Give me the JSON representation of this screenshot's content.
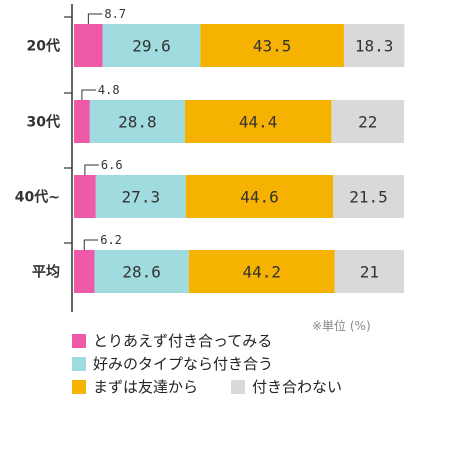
{
  "chart_data": {
    "type": "bar",
    "orientation": "horizontal",
    "stacked": true,
    "xlim": [
      0,
      100
    ],
    "categories": [
      "20代",
      "30代",
      "40代~",
      "平均"
    ],
    "series": [
      {
        "name": "とりあえず付き合ってみる",
        "values": [
          8.7,
          4.8,
          6.6,
          6.2
        ],
        "color": "#ee5aa8"
      },
      {
        "name": "好みのタイプなら付き合う",
        "values": [
          29.6,
          28.8,
          27.3,
          28.6
        ],
        "color": "#a0dbe0"
      },
      {
        "name": "まずは友達から",
        "values": [
          43.5,
          44.4,
          44.6,
          44.2
        ],
        "color": "#f5b200"
      },
      {
        "name": "付き合わない",
        "values": [
          18.3,
          22,
          21.5,
          21
        ],
        "color": "#d9d9d9"
      }
    ],
    "value_labels": [
      [
        "8.7",
        "29.6",
        "43.5",
        "18.3"
      ],
      [
        "4.8",
        "28.8",
        "44.4",
        "22"
      ],
      [
        "6.6",
        "27.3",
        "44.6",
        "21.5"
      ],
      [
        "6.2",
        "28.6",
        "44.2",
        "21"
      ]
    ],
    "unit_note": "※単位 (%)",
    "legend_position": "bottom"
  },
  "colors": {
    "axis": "#333333",
    "label_text": "#333333"
  }
}
